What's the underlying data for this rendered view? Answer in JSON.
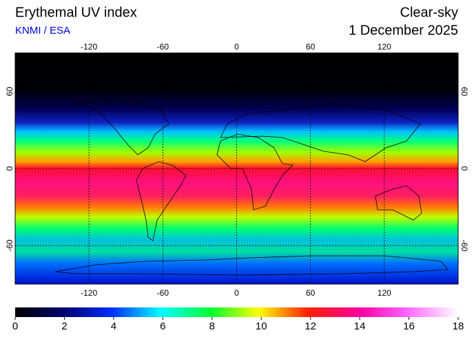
{
  "header": {
    "title": "Erythemal UV index",
    "source": "KNMI / ESA",
    "condition": "Clear-sky",
    "date": "1 December 2025"
  },
  "map": {
    "xlim": [
      -180,
      180
    ],
    "ylim": [
      -90,
      90
    ],
    "xticks": [
      -120,
      -60,
      0,
      60,
      120
    ],
    "yticks": [
      -60,
      0,
      60
    ],
    "grid": true
  },
  "colorbar": {
    "lim": [
      0,
      18
    ],
    "ticks": [
      0,
      2,
      4,
      6,
      8,
      10,
      12,
      14,
      16,
      18
    ]
  }
}
